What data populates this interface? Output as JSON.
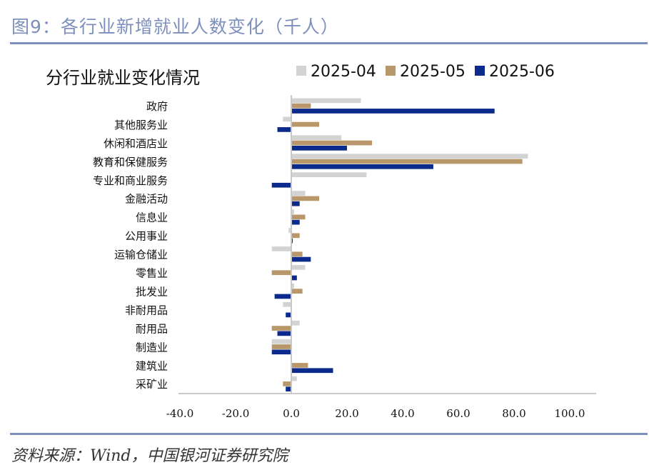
{
  "header": {
    "figure_title": "图9：各行业新增就业人数变化（千人）",
    "source": "资料来源：Wind，中国银河证券研究院"
  },
  "colors": {
    "accent": "#7d8fbd",
    "series": [
      "#d3d3d3",
      "#b8976a",
      "#0b2a8c"
    ]
  },
  "chart_data": {
    "type": "bar",
    "orientation": "horizontal",
    "title": "分行业就业变化情况",
    "categories": [
      "政府",
      "其他服务业",
      "休闲和酒店业",
      "教育和保健服务",
      "专业和商业服务",
      "金融活动",
      "信息业",
      "公用事业",
      "运输仓储业",
      "零售业",
      "批发业",
      "非耐用品",
      "耐用品",
      "制造业",
      "建筑业",
      "采矿业"
    ],
    "series": [
      {
        "name": "2025-04",
        "values": [
          25,
          -3,
          18,
          85,
          27,
          5,
          1,
          -1,
          -7,
          5,
          1,
          -3,
          3,
          -7,
          0,
          2
        ]
      },
      {
        "name": "2025-05",
        "values": [
          7,
          10,
          29,
          83,
          0,
          10,
          5,
          3,
          4,
          -7,
          4,
          0,
          -7,
          -7,
          6,
          -3
        ]
      },
      {
        "name": "2025-06",
        "values": [
          73,
          -5,
          20,
          51,
          -7,
          3,
          3,
          0.5,
          7,
          2,
          -6,
          -2,
          -5,
          -7,
          15,
          -2
        ]
      }
    ],
    "xlim": [
      -40,
      100
    ],
    "xticks": [
      "-40.0",
      "-20.0",
      "0.0",
      "20.0",
      "40.0",
      "60.0",
      "80.0",
      "100.0"
    ],
    "legend": "top",
    "grid": false
  }
}
